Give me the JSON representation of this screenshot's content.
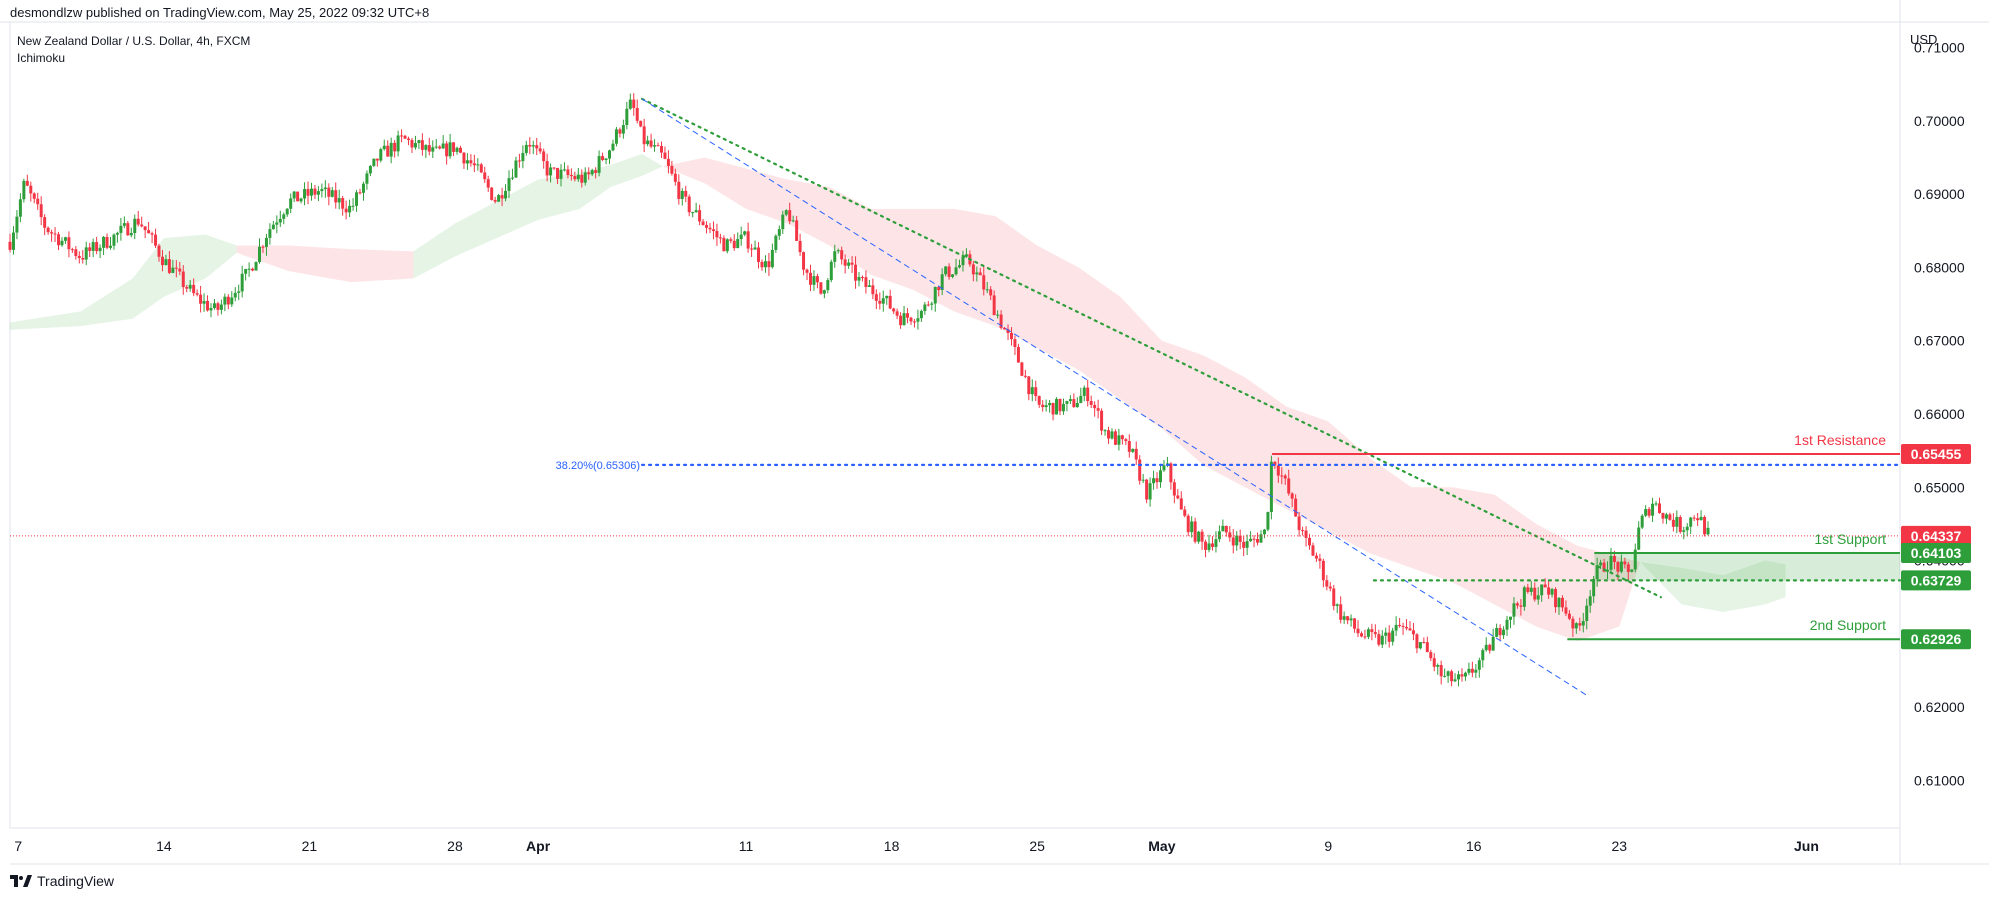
{
  "header": {
    "published_by": "desmondlzw published on TradingView.com, May 25, 2022 09:32 UTC+8"
  },
  "footer": {
    "brand": "TradingView",
    "logo_icon": "tradingview-logo-icon"
  },
  "chart_data": {
    "type": "candlestick",
    "symbol_line": "New Zealand Dollar / U.S. Dollar, 4h, FXCM",
    "indicator": "Ichimoku",
    "currency_label": "USD",
    "ylim": [
      0.6035,
      0.7135
    ],
    "y_ticks": [
      "0.71000",
      "0.70000",
      "0.69000",
      "0.68000",
      "0.67000",
      "0.66000",
      "0.65000",
      "0.64000",
      "0.63000",
      "0.62000",
      "0.61000"
    ],
    "x_ticks": [
      {
        "day": 7,
        "label": "7"
      },
      {
        "day": 14,
        "label": "14"
      },
      {
        "day": 21,
        "label": "21"
      },
      {
        "day": 28,
        "label": "28"
      },
      {
        "day": 32,
        "label": "Apr"
      },
      {
        "day": 42,
        "label": "11"
      },
      {
        "day": 49,
        "label": "18"
      },
      {
        "day": 56,
        "label": "25"
      },
      {
        "day": 62,
        "label": "May"
      },
      {
        "day": 70,
        "label": "9"
      },
      {
        "day": 77,
        "label": "16"
      },
      {
        "day": 84,
        "label": "23"
      },
      {
        "day": 93,
        "label": "Jun"
      }
    ],
    "xlim": [
      6.6,
      97.5
    ],
    "price_path": [
      [
        6.6,
        0.6835
      ],
      [
        7.3,
        0.6915
      ],
      [
        8.3,
        0.6855
      ],
      [
        10,
        0.6815
      ],
      [
        11.5,
        0.684
      ],
      [
        12.8,
        0.6865
      ],
      [
        14,
        0.681
      ],
      [
        15.5,
        0.676
      ],
      [
        16.5,
        0.674
      ],
      [
        18,
        0.679
      ],
      [
        19,
        0.685
      ],
      [
        20,
        0.689
      ],
      [
        21.5,
        0.6905
      ],
      [
        23,
        0.688
      ],
      [
        24.3,
        0.695
      ],
      [
        25.5,
        0.6975
      ],
      [
        27,
        0.6955
      ],
      [
        28,
        0.6965
      ],
      [
        29,
        0.6935
      ],
      [
        30,
        0.689
      ],
      [
        31.5,
        0.6975
      ],
      [
        32.5,
        0.693
      ],
      [
        34.3,
        0.692
      ],
      [
        35.5,
        0.6965
      ],
      [
        36.5,
        0.7025
      ],
      [
        37,
        0.6975
      ],
      [
        38,
        0.695
      ],
      [
        39,
        0.689
      ],
      [
        40,
        0.686
      ],
      [
        41,
        0.683
      ],
      [
        42,
        0.684
      ],
      [
        43,
        0.68
      ],
      [
        44,
        0.688
      ],
      [
        44.8,
        0.68
      ],
      [
        45.6,
        0.6765
      ],
      [
        46.3,
        0.682
      ],
      [
        47.5,
        0.678
      ],
      [
        48.5,
        0.676
      ],
      [
        49.5,
        0.673
      ],
      [
        50.5,
        0.674
      ],
      [
        51.5,
        0.679
      ],
      [
        52.7,
        0.681
      ],
      [
        53.7,
        0.676
      ],
      [
        55,
        0.668
      ],
      [
        56,
        0.661
      ],
      [
        57.5,
        0.661
      ],
      [
        58.4,
        0.663
      ],
      [
        59.3,
        0.6575
      ],
      [
        60.5,
        0.655
      ],
      [
        61.3,
        0.649
      ],
      [
        62.2,
        0.653
      ],
      [
        63,
        0.646
      ],
      [
        64,
        0.642
      ],
      [
        65,
        0.644
      ],
      [
        66,
        0.642
      ],
      [
        67,
        0.644
      ],
      [
        67.3,
        0.6545
      ],
      [
        68,
        0.65
      ],
      [
        68.8,
        0.643
      ],
      [
        69.5,
        0.64
      ],
      [
        70.5,
        0.633
      ],
      [
        71.5,
        0.63
      ],
      [
        72.5,
        0.629
      ],
      [
        73.5,
        0.631
      ],
      [
        74.5,
        0.6285
      ],
      [
        75.5,
        0.624
      ],
      [
        76.5,
        0.6235
      ],
      [
        77.5,
        0.627
      ],
      [
        78.5,
        0.632
      ],
      [
        79.5,
        0.6355
      ],
      [
        80.5,
        0.636
      ],
      [
        81.5,
        0.633
      ],
      [
        82,
        0.63
      ],
      [
        82.8,
        0.638
      ],
      [
        83.5,
        0.64
      ],
      [
        84,
        0.639
      ],
      [
        84.5,
        0.638
      ],
      [
        85,
        0.645
      ],
      [
        85.6,
        0.648
      ],
      [
        86.3,
        0.646
      ],
      [
        87,
        0.6445
      ],
      [
        87.7,
        0.6465
      ],
      [
        88.3,
        0.6434
      ]
    ],
    "cloud_segments": [
      {
        "color": "green",
        "top": [
          [
            6.6,
            0.6725
          ],
          [
            10,
            0.674
          ],
          [
            12.5,
            0.6785
          ],
          [
            14,
            0.684
          ],
          [
            16,
            0.6845
          ],
          [
            17.5,
            0.683
          ]
        ],
        "bottom": [
          [
            6.6,
            0.6715
          ],
          [
            10,
            0.672
          ],
          [
            12.5,
            0.673
          ],
          [
            14,
            0.676
          ],
          [
            16,
            0.6785
          ],
          [
            17.5,
            0.682
          ]
        ]
      },
      {
        "color": "red",
        "top": [
          [
            17.5,
            0.683
          ],
          [
            20,
            0.683
          ],
          [
            23,
            0.6825
          ],
          [
            26,
            0.6822
          ]
        ],
        "bottom": [
          [
            17.5,
            0.682
          ],
          [
            20,
            0.6795
          ],
          [
            23,
            0.678
          ],
          [
            26,
            0.6785
          ]
        ]
      },
      {
        "color": "green",
        "top": [
          [
            26,
            0.6822
          ],
          [
            28,
            0.686
          ],
          [
            30,
            0.689
          ],
          [
            32,
            0.692
          ],
          [
            34,
            0.693
          ],
          [
            35.5,
            0.694
          ],
          [
            37,
            0.6955
          ],
          [
            38,
            0.6938
          ]
        ],
        "bottom": [
          [
            26,
            0.6785
          ],
          [
            28,
            0.6815
          ],
          [
            30,
            0.684
          ],
          [
            32,
            0.6865
          ],
          [
            34,
            0.688
          ],
          [
            35.5,
            0.691
          ],
          [
            37,
            0.6925
          ],
          [
            38,
            0.6938
          ]
        ]
      },
      {
        "color": "red",
        "top": [
          [
            38,
            0.6938
          ],
          [
            40,
            0.695
          ],
          [
            42,
            0.6935
          ],
          [
            44,
            0.692
          ],
          [
            46,
            0.691
          ],
          [
            48,
            0.688
          ],
          [
            50,
            0.688
          ],
          [
            52,
            0.688
          ],
          [
            54,
            0.687
          ],
          [
            56,
            0.683
          ],
          [
            58,
            0.68
          ],
          [
            60,
            0.676
          ],
          [
            62,
            0.67
          ],
          [
            64,
            0.668
          ],
          [
            66,
            0.665
          ],
          [
            68,
            0.661
          ],
          [
            70,
            0.659
          ],
          [
            72,
            0.654
          ],
          [
            74,
            0.65
          ],
          [
            76,
            0.65
          ],
          [
            78,
            0.649
          ],
          [
            80,
            0.645
          ],
          [
            82,
            0.642
          ],
          [
            84,
            0.6405
          ],
          [
            85,
            0.6398
          ]
        ],
        "bottom": [
          [
            38,
            0.6938
          ],
          [
            40,
            0.6915
          ],
          [
            42,
            0.688
          ],
          [
            44,
            0.686
          ],
          [
            46,
            0.683
          ],
          [
            48,
            0.679
          ],
          [
            50,
            0.677
          ],
          [
            52,
            0.674
          ],
          [
            54,
            0.672
          ],
          [
            56,
            0.669
          ],
          [
            58,
            0.666
          ],
          [
            60,
            0.662
          ],
          [
            62,
            0.658
          ],
          [
            64,
            0.653
          ],
          [
            66,
            0.65
          ],
          [
            68,
            0.647
          ],
          [
            70,
            0.644
          ],
          [
            72,
            0.641
          ],
          [
            74,
            0.639
          ],
          [
            76,
            0.637
          ],
          [
            78,
            0.634
          ],
          [
            80,
            0.631
          ],
          [
            82,
            0.629
          ],
          [
            84,
            0.631
          ],
          [
            85,
            0.6398
          ]
        ]
      },
      {
        "color": "green",
        "top": [
          [
            85,
            0.6398
          ],
          [
            87,
            0.639
          ],
          [
            89,
            0.638
          ],
          [
            91,
            0.64
          ],
          [
            92,
            0.6395
          ]
        ],
        "bottom": [
          [
            85,
            0.6398
          ],
          [
            87,
            0.634
          ],
          [
            89,
            0.633
          ],
          [
            91,
            0.634
          ],
          [
            92,
            0.635
          ]
        ]
      }
    ],
    "lines": [
      {
        "name": "green-dotted-trendline",
        "style": "dotted",
        "color": "#2e9e3a",
        "points": [
          [
            37,
            0.703
          ],
          [
            86,
            0.635
          ]
        ]
      },
      {
        "name": "blue-dashed-trendline",
        "style": "dashed",
        "color": "#2962ff",
        "points": [
          [
            37,
            0.703
          ],
          [
            82.5,
            0.6215
          ]
        ]
      },
      {
        "name": "fib-line",
        "style": "dotted",
        "color": "#2962ff",
        "points": [
          [
            37,
            0.65306
          ],
          [
            97.5,
            0.65306
          ]
        ]
      },
      {
        "name": "current-price-line",
        "style": "dotted-thin",
        "color": "#f23645",
        "points": [
          [
            6.6,
            0.64337
          ],
          [
            97.5,
            0.64337
          ]
        ]
      },
      {
        "name": "resistance-line",
        "style": "solid",
        "color": "#f23645",
        "points": [
          [
            67.3,
            0.65455
          ],
          [
            97.5,
            0.65455
          ]
        ]
      },
      {
        "name": "support-1-line",
        "style": "solid",
        "color": "#2e9e3a",
        "points": [
          [
            82.8,
            0.64103
          ],
          [
            97.5,
            0.64103
          ]
        ]
      },
      {
        "name": "support-dotted-line",
        "style": "dotted",
        "color": "#2e9e3a",
        "points": [
          [
            72.2,
            0.63729
          ],
          [
            97.5,
            0.63729
          ]
        ]
      },
      {
        "name": "support-2-line",
        "style": "solid",
        "color": "#2e9e3a",
        "points": [
          [
            81.5,
            0.62926
          ],
          [
            97.5,
            0.62926
          ]
        ]
      }
    ],
    "support_zone": {
      "x_start": 82.8,
      "top": 0.64103,
      "bottom": 0.63729
    },
    "annotations": [
      {
        "text": "38.20%(0.65306)",
        "x": 37,
        "y": 0.65306,
        "color": "#2962ff"
      },
      {
        "text": "1st Resistance",
        "x": 97.5,
        "y": 0.65455,
        "color": "#f23645"
      },
      {
        "text": "1st Support",
        "x": 97.5,
        "y": 0.64103,
        "color": "#2e9e3a"
      },
      {
        "text": "2nd Support",
        "x": 97.5,
        "y": 0.62926,
        "color": "#2e9e3a"
      }
    ],
    "price_labels": [
      {
        "text": "0.65455",
        "y": 0.65455,
        "color": "#f23645"
      },
      {
        "text": "0.64337",
        "y": 0.64337,
        "color": "#f23645"
      },
      {
        "text": "0.64103",
        "y": 0.64103,
        "color": "#2e9e3a"
      },
      {
        "text": "0.63729",
        "y": 0.63729,
        "color": "#2e9e3a"
      },
      {
        "text": "0.62926",
        "y": 0.62926,
        "color": "#2e9e3a"
      }
    ],
    "colors": {
      "up": "#26a69a",
      "up_candle": "#2e9e3a",
      "down": "#f23645",
      "grid_axis": "#e0e3eb",
      "axis_text": "#131722"
    }
  }
}
